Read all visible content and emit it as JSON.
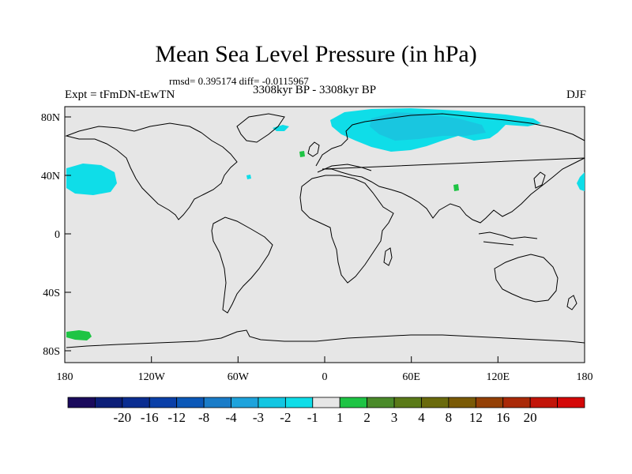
{
  "title": "Mean Sea Level Pressure (in hPa)",
  "stats": "rmsd= 0.395174 diff= -0.0115967",
  "experiment": "Expt = tFmDN-tEwTN",
  "period": "3308kyr BP - 3308kyr BP",
  "season": "DJF",
  "lat_ticks": [
    "80N",
    "40N",
    "0",
    "40S",
    "80S"
  ],
  "lon_ticks": [
    "180",
    "120W",
    "60W",
    "0",
    "60E",
    "120E",
    "180"
  ],
  "colorbar": {
    "colors": [
      "#1a0a5c",
      "#0c1e78",
      "#0a2d91",
      "#0a3fa8",
      "#0b58b8",
      "#1a7cc8",
      "#1ea3dc",
      "#12c6e2",
      "#0fdde8",
      "#e6e6e6",
      "#1ec444",
      "#4a8a2a",
      "#5a7a18",
      "#6a6a0c",
      "#7a5a06",
      "#944006",
      "#aa2a08",
      "#c21408",
      "#d40808"
    ],
    "labels": [
      "-20",
      "-16",
      "-12",
      "-8",
      "-4",
      "-3",
      "-2",
      "-1",
      "1",
      "2",
      "3",
      "4",
      "8",
      "12",
      "16",
      "20"
    ]
  },
  "map": {
    "background": "#e6e6e6",
    "anomaly_colors": {
      "neg_light": "#0fdde8",
      "neg_mid": "#19c6e0",
      "pos": "#1ec444"
    }
  }
}
